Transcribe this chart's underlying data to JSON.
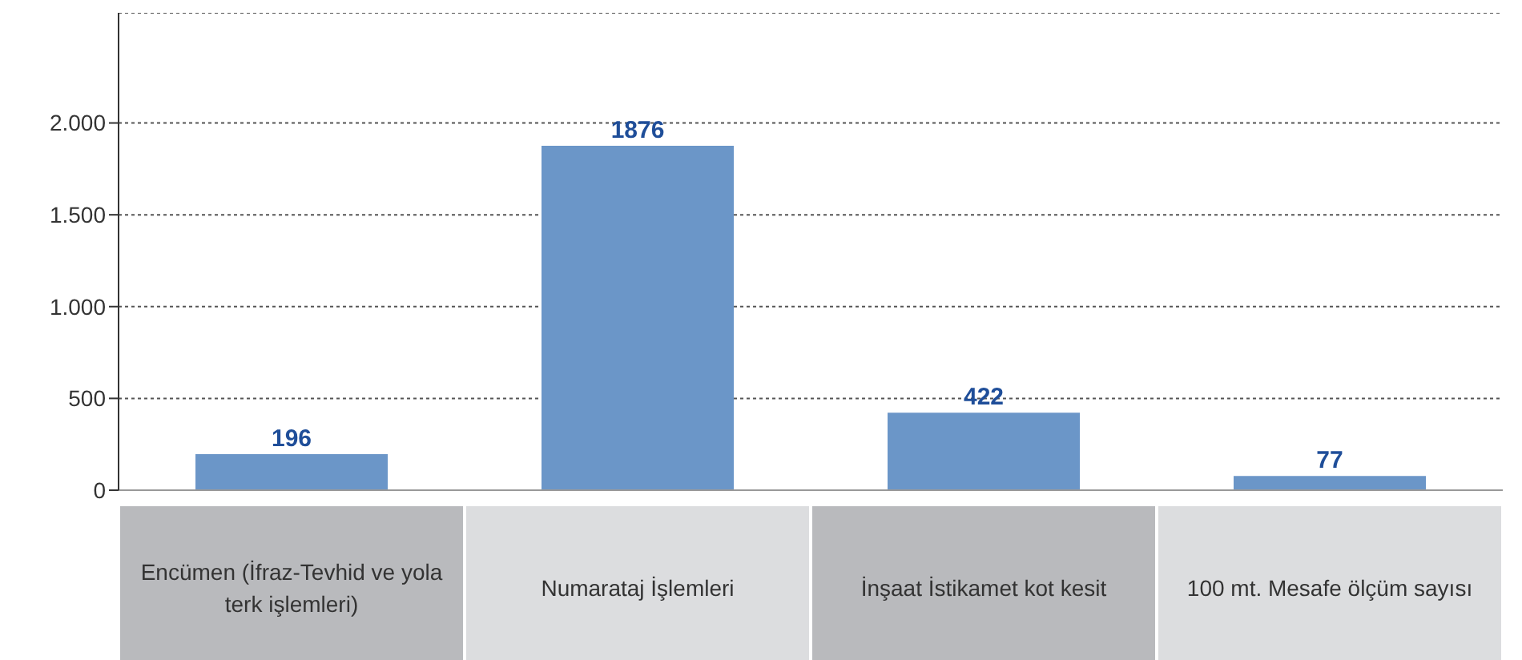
{
  "chart_data": {
    "type": "bar",
    "categories": [
      "Encümen (İfraz-Tevhid ve yola terk işlemleri)",
      "Numarataj İşlemleri",
      "İnşaat İstikamet kot kesit",
      "100 mt. Mesafe ölçüm sayısı"
    ],
    "values": [
      196,
      1876,
      422,
      77
    ],
    "color": "#6b96c8",
    "ylim": [
      0,
      2600
    ],
    "yticks": [
      0,
      500,
      {
        "value": 1000,
        "label": "1.000"
      },
      {
        "value": 1500,
        "label": "1.500"
      },
      {
        "value": 2000,
        "label": "2.000"
      }
    ],
    "grid": "y",
    "data_labels": true,
    "legend": false
  }
}
